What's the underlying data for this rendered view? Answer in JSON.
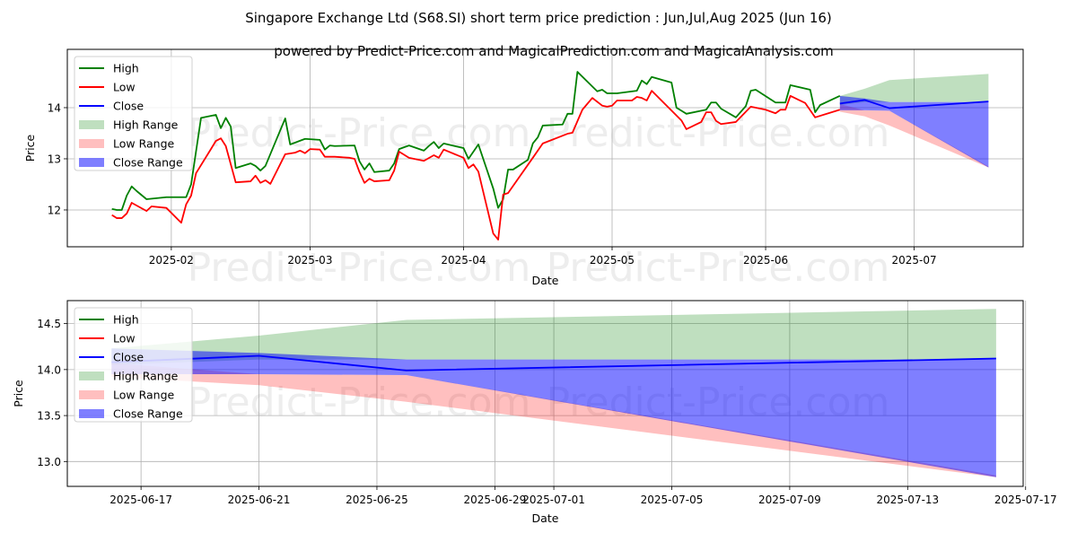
{
  "header": {
    "title": "Singapore Exchange Ltd (S68.SI) short term price prediction : Jun,Jul,Aug 2025 (Jun 16)",
    "subtitle": "powered by Predict-Price.com and MagicalPrediction.com and MagicalAnalysis.com"
  },
  "watermark": "Predict-Price.com",
  "colors": {
    "high": "#008000",
    "low": "#ff0000",
    "close": "#0000ff",
    "high_range": "rgba(0,128,0,0.25)",
    "low_range": "rgba(255,0,0,0.25)",
    "close_range": "rgba(0,0,255,0.5)"
  },
  "legend": [
    "High",
    "Low",
    "Close",
    "High Range",
    "Low Range",
    "Close Range"
  ],
  "forecast": {
    "dates": [
      "2025-06-16",
      "2025-06-21",
      "2025-06-26",
      "2025-07-16"
    ],
    "close": [
      14.08,
      14.15,
      13.99,
      14.12
    ],
    "high_range": {
      "upper": [
        14.23,
        14.37,
        14.54,
        14.66
      ],
      "lower": [
        14.05,
        14.11,
        14.11,
        14.11
      ]
    },
    "low_range": {
      "upper": [
        14.07,
        13.95,
        13.94,
        12.85
      ],
      "lower": [
        13.92,
        13.83,
        13.65,
        12.83
      ]
    },
    "close_range": {
      "upper": [
        14.23,
        14.18,
        14.11,
        14.11
      ],
      "lower": [
        13.95,
        13.95,
        13.94,
        12.83
      ]
    }
  },
  "chart_data": [
    {
      "type": "line",
      "title": "",
      "xlabel": "Date",
      "ylabel": "Price",
      "xlim": [
        "2025-01-11",
        "2025-07-23"
      ],
      "ylim": [
        11.28,
        15.14
      ],
      "grid": true,
      "legend_position": "upper-left",
      "xticks": [
        {
          "value": "2025-02-01",
          "label": "2025-02"
        },
        {
          "value": "2025-03-01",
          "label": "2025-03"
        },
        {
          "value": "2025-04-01",
          "label": "2025-04"
        },
        {
          "value": "2025-05-01",
          "label": "2025-05"
        },
        {
          "value": "2025-06-01",
          "label": "2025-06"
        },
        {
          "value": "2025-07-01",
          "label": "2025-07"
        }
      ],
      "yticks": [
        {
          "value": 12,
          "label": "12"
        },
        {
          "value": 13,
          "label": "13"
        },
        {
          "value": 14,
          "label": "14"
        }
      ],
      "series": [
        {
          "name": "High",
          "points": [
            [
              "2025-01-20",
              12.02
            ],
            [
              "2025-01-21",
              12.0
            ],
            [
              "2025-01-22",
              12.0
            ],
            [
              "2025-01-23",
              12.28
            ],
            [
              "2025-01-24",
              12.46
            ],
            [
              "2025-01-25",
              12.37
            ],
            [
              "2025-01-27",
              12.21
            ],
            [
              "2025-01-31",
              12.25
            ],
            [
              "2025-02-04",
              12.25
            ],
            [
              "2025-02-05",
              12.5
            ],
            [
              "2025-02-07",
              13.8
            ],
            [
              "2025-02-10",
              13.86
            ],
            [
              "2025-02-11",
              13.6
            ],
            [
              "2025-02-12",
              13.8
            ],
            [
              "2025-02-13",
              13.63
            ],
            [
              "2025-02-14",
              12.82
            ],
            [
              "2025-02-17",
              12.91
            ],
            [
              "2025-02-18",
              12.86
            ],
            [
              "2025-02-19",
              12.77
            ],
            [
              "2025-02-20",
              12.86
            ],
            [
              "2025-02-24",
              13.79
            ],
            [
              "2025-02-25",
              13.28
            ],
            [
              "2025-02-28",
              13.39
            ],
            [
              "2025-03-03",
              13.37
            ],
            [
              "2025-03-04",
              13.18
            ],
            [
              "2025-03-05",
              13.26
            ],
            [
              "2025-03-06",
              13.25
            ],
            [
              "2025-03-10",
              13.26
            ],
            [
              "2025-03-11",
              12.95
            ],
            [
              "2025-03-12",
              12.79
            ],
            [
              "2025-03-13",
              12.91
            ],
            [
              "2025-03-14",
              12.74
            ],
            [
              "2025-03-17",
              12.77
            ],
            [
              "2025-03-18",
              12.91
            ],
            [
              "2025-03-19",
              13.19
            ],
            [
              "2025-03-21",
              13.26
            ],
            [
              "2025-03-24",
              13.16
            ],
            [
              "2025-03-25",
              13.25
            ],
            [
              "2025-03-26",
              13.33
            ],
            [
              "2025-03-27",
              13.21
            ],
            [
              "2025-03-28",
              13.3
            ],
            [
              "2025-04-01",
              13.21
            ],
            [
              "2025-04-02",
              13.0
            ],
            [
              "2025-04-04",
              13.28
            ],
            [
              "2025-04-07",
              12.42
            ],
            [
              "2025-04-08",
              12.04
            ],
            [
              "2025-04-09",
              12.21
            ],
            [
              "2025-04-10",
              12.79
            ],
            [
              "2025-04-11",
              12.79
            ],
            [
              "2025-04-14",
              12.98
            ],
            [
              "2025-04-15",
              13.3
            ],
            [
              "2025-04-16",
              13.42
            ],
            [
              "2025-04-17",
              13.65
            ],
            [
              "2025-04-21",
              13.67
            ],
            [
              "2025-04-22",
              13.88
            ],
            [
              "2025-04-23",
              13.88
            ],
            [
              "2025-04-24",
              14.7
            ],
            [
              "2025-04-28",
              14.32
            ],
            [
              "2025-04-29",
              14.35
            ],
            [
              "2025-04-30",
              14.28
            ],
            [
              "2025-05-02",
              14.28
            ],
            [
              "2025-05-06",
              14.33
            ],
            [
              "2025-05-07",
              14.53
            ],
            [
              "2025-05-08",
              14.46
            ],
            [
              "2025-05-09",
              14.6
            ],
            [
              "2025-05-13",
              14.49
            ],
            [
              "2025-05-14",
              14.0
            ],
            [
              "2025-05-16",
              13.88
            ],
            [
              "2025-05-20",
              13.96
            ],
            [
              "2025-05-21",
              14.1
            ],
            [
              "2025-05-22",
              14.1
            ],
            [
              "2025-05-23",
              13.98
            ],
            [
              "2025-05-26",
              13.81
            ],
            [
              "2025-05-28",
              14.03
            ],
            [
              "2025-05-29",
              14.33
            ],
            [
              "2025-05-30",
              14.35
            ],
            [
              "2025-06-03",
              14.1
            ],
            [
              "2025-06-05",
              14.1
            ],
            [
              "2025-06-06",
              14.44
            ],
            [
              "2025-06-10",
              14.35
            ],
            [
              "2025-06-11",
              13.91
            ],
            [
              "2025-06-12",
              14.05
            ],
            [
              "2025-06-16",
              14.23
            ]
          ]
        },
        {
          "name": "Low",
          "points": [
            [
              "2025-01-20",
              11.9
            ],
            [
              "2025-01-21",
              11.84
            ],
            [
              "2025-01-22",
              11.84
            ],
            [
              "2025-01-23",
              11.93
            ],
            [
              "2025-01-24",
              12.14
            ],
            [
              "2025-01-27",
              11.98
            ],
            [
              "2025-01-28",
              12.07
            ],
            [
              "2025-01-31",
              12.04
            ],
            [
              "2025-02-03",
              11.75
            ],
            [
              "2025-02-04",
              12.11
            ],
            [
              "2025-02-05",
              12.28
            ],
            [
              "2025-02-06",
              12.72
            ],
            [
              "2025-02-09",
              13.19
            ],
            [
              "2025-02-10",
              13.35
            ],
            [
              "2025-02-11",
              13.4
            ],
            [
              "2025-02-12",
              13.25
            ],
            [
              "2025-02-14",
              12.54
            ],
            [
              "2025-02-17",
              12.56
            ],
            [
              "2025-02-18",
              12.67
            ],
            [
              "2025-02-19",
              12.53
            ],
            [
              "2025-02-20",
              12.58
            ],
            [
              "2025-02-21",
              12.51
            ],
            [
              "2025-02-24",
              13.09
            ],
            [
              "2025-02-26",
              13.12
            ],
            [
              "2025-02-27",
              13.16
            ],
            [
              "2025-02-28",
              13.11
            ],
            [
              "2025-03-01",
              13.19
            ],
            [
              "2025-03-03",
              13.18
            ],
            [
              "2025-03-04",
              13.04
            ],
            [
              "2025-03-06",
              13.04
            ],
            [
              "2025-03-09",
              13.02
            ],
            [
              "2025-03-10",
              13.0
            ],
            [
              "2025-03-11",
              12.74
            ],
            [
              "2025-03-12",
              12.53
            ],
            [
              "2025-03-13",
              12.61
            ],
            [
              "2025-03-14",
              12.56
            ],
            [
              "2025-03-17",
              12.58
            ],
            [
              "2025-03-18",
              12.77
            ],
            [
              "2025-03-19",
              13.14
            ],
            [
              "2025-03-21",
              13.02
            ],
            [
              "2025-03-24",
              12.96
            ],
            [
              "2025-03-26",
              13.07
            ],
            [
              "2025-03-27",
              13.02
            ],
            [
              "2025-03-28",
              13.18
            ],
            [
              "2025-04-01",
              13.02
            ],
            [
              "2025-04-02",
              12.82
            ],
            [
              "2025-04-03",
              12.89
            ],
            [
              "2025-04-04",
              12.75
            ],
            [
              "2025-04-07",
              11.54
            ],
            [
              "2025-04-08",
              11.42
            ],
            [
              "2025-04-09",
              12.3
            ],
            [
              "2025-04-10",
              12.33
            ],
            [
              "2025-04-15",
              13.02
            ],
            [
              "2025-04-17",
              13.3
            ],
            [
              "2025-04-22",
              13.49
            ],
            [
              "2025-04-23",
              13.51
            ],
            [
              "2025-04-25",
              13.96
            ],
            [
              "2025-04-27",
              14.19
            ],
            [
              "2025-04-29",
              14.04
            ],
            [
              "2025-04-30",
              14.02
            ],
            [
              "2025-05-01",
              14.04
            ],
            [
              "2025-05-02",
              14.14
            ],
            [
              "2025-05-05",
              14.14
            ],
            [
              "2025-05-06",
              14.21
            ],
            [
              "2025-05-07",
              14.19
            ],
            [
              "2025-05-08",
              14.14
            ],
            [
              "2025-05-09",
              14.33
            ],
            [
              "2025-05-15",
              13.75
            ],
            [
              "2025-05-16",
              13.58
            ],
            [
              "2025-05-19",
              13.72
            ],
            [
              "2025-05-20",
              13.91
            ],
            [
              "2025-05-21",
              13.91
            ],
            [
              "2025-05-22",
              13.74
            ],
            [
              "2025-05-23",
              13.68
            ],
            [
              "2025-05-26",
              13.72
            ],
            [
              "2025-05-29",
              14.02
            ],
            [
              "2025-06-01",
              13.96
            ],
            [
              "2025-06-03",
              13.89
            ],
            [
              "2025-06-04",
              13.96
            ],
            [
              "2025-06-05",
              13.96
            ],
            [
              "2025-06-06",
              14.23
            ],
            [
              "2025-06-09",
              14.09
            ],
            [
              "2025-06-11",
              13.81
            ],
            [
              "2025-06-16",
              13.96
            ]
          ]
        },
        {
          "name": "Close",
          "source": "forecast.close"
        }
      ]
    },
    {
      "type": "line",
      "title": "",
      "xlabel": "Date",
      "ylabel": "Price",
      "xlim": [
        "2025-06-14T12:00",
        "2025-07-16T22:00"
      ],
      "ylim": [
        12.73,
        14.75
      ],
      "grid": true,
      "legend_position": "upper-left",
      "xticks": [
        {
          "value": "2025-06-17",
          "label": "2025-06-17"
        },
        {
          "value": "2025-06-21",
          "label": "2025-06-21"
        },
        {
          "value": "2025-06-25",
          "label": "2025-06-25"
        },
        {
          "value": "2025-06-29",
          "label": "2025-06-29"
        },
        {
          "value": "2025-07-01",
          "label": "2025-07-01"
        },
        {
          "value": "2025-07-05",
          "label": "2025-07-05"
        },
        {
          "value": "2025-07-09",
          "label": "2025-07-09"
        },
        {
          "value": "2025-07-13",
          "label": "2025-07-13"
        },
        {
          "value": "2025-07-17",
          "label": "2025-07-17"
        }
      ],
      "yticks": [
        {
          "value": 13.0,
          "label": "13.0"
        },
        {
          "value": 13.5,
          "label": "13.5"
        },
        {
          "value": 14.0,
          "label": "14.0"
        },
        {
          "value": 14.5,
          "label": "14.5"
        }
      ],
      "series": [
        {
          "name": "Close",
          "source": "forecast.close"
        }
      ]
    }
  ]
}
